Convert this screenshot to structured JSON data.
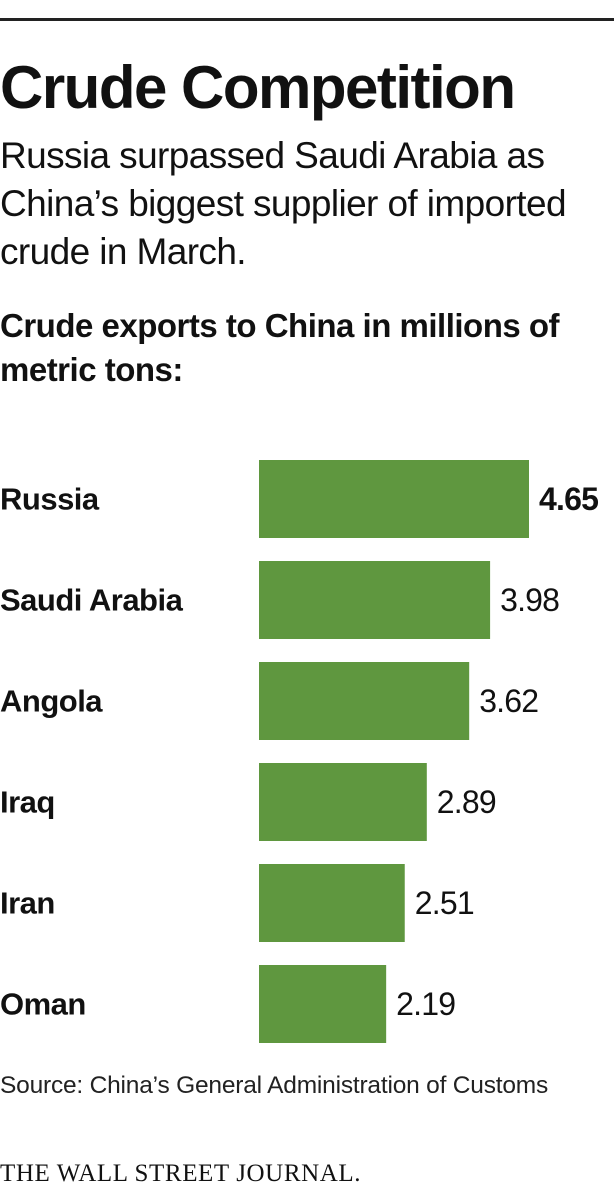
{
  "title": "Crude Competition",
  "subtitle": "Russia surpassed Saudi Arabia as China’s biggest supplier of imported crude in March.",
  "chart_heading": "Crude exports to China in millions of metric tons:",
  "source": "Source: China’s General Administration of Customs",
  "credit": "THE WALL STREET JOURNAL.",
  "colors": {
    "bar": "#5f973f",
    "text": "#111111",
    "rule": "#222222"
  },
  "chart_data": {
    "type": "bar",
    "orientation": "horizontal",
    "categories": [
      "Russia",
      "Saudi Arabia",
      "Angola",
      "Iraq",
      "Iran",
      "Oman"
    ],
    "values": [
      4.65,
      3.98,
      3.62,
      2.89,
      2.51,
      2.19
    ],
    "value_labels": [
      "4.65",
      "3.98",
      "3.62",
      "2.89",
      "2.51",
      "2.19"
    ],
    "highlighted": "Russia",
    "xlim": [
      0,
      4.65
    ],
    "grid": false,
    "legend": "none"
  }
}
